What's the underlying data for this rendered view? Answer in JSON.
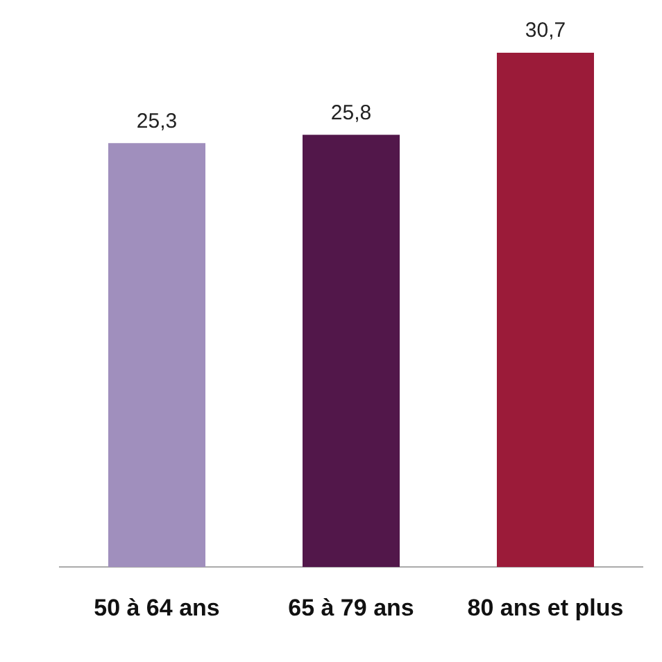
{
  "chart_data": {
    "type": "bar",
    "categories": [
      "50 à 64 ans",
      "65 à 79 ans",
      "80 ans et plus"
    ],
    "values": [
      25.3,
      25.8,
      30.7
    ],
    "value_labels": [
      "25,3",
      "25,8",
      "30,7"
    ],
    "colors": [
      "#a08fbd",
      "#52174a",
      "#9b1b39"
    ],
    "grid": false,
    "legend": false
  }
}
